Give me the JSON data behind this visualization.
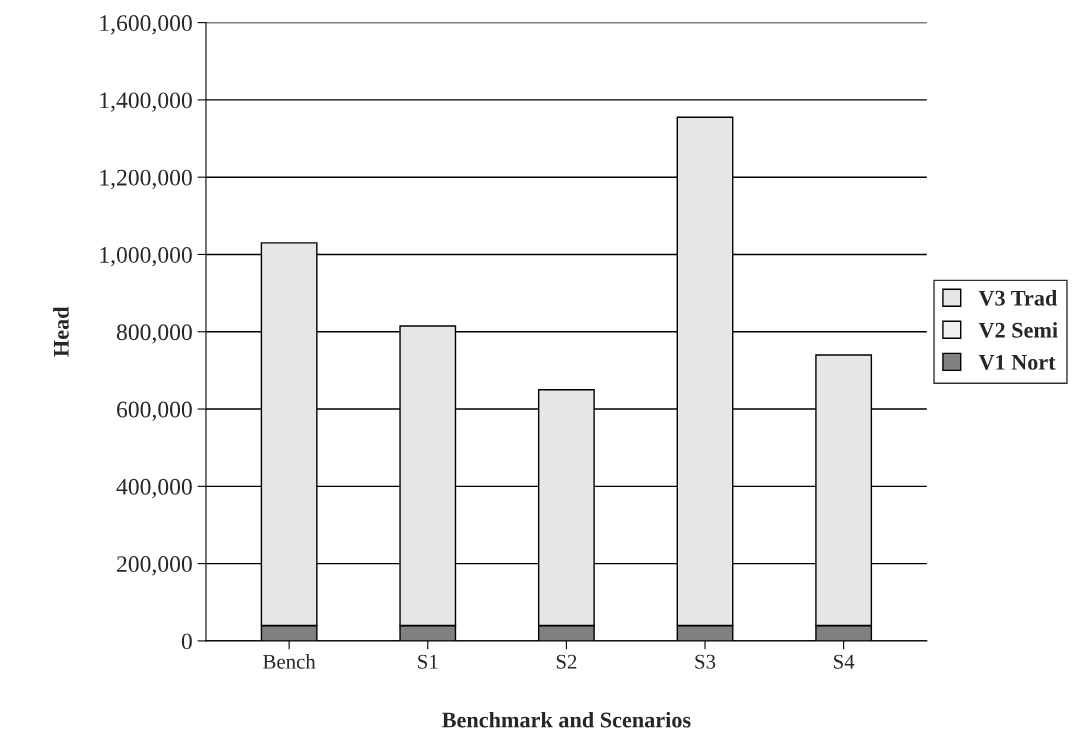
{
  "chart_data": {
    "type": "bar",
    "stacked": true,
    "xlabel": "Benchmark and Scenarios",
    "ylabel": "Head",
    "categories": [
      "Bench",
      "S1",
      "S2",
      "S3",
      "S4"
    ],
    "series": [
      {
        "name": "V1 Nort",
        "color": "#808080",
        "values": [
          40000,
          40000,
          40000,
          40000,
          40000
        ]
      },
      {
        "name": "V2 Semi",
        "color": "#f0f0f0",
        "values": [
          0,
          0,
          0,
          0,
          0
        ]
      },
      {
        "name": "V3 Trad",
        "color": "#e6e6e6",
        "values": [
          990000,
          775000,
          610000,
          1315000,
          700000
        ]
      }
    ],
    "ylim": [
      0,
      1600000
    ],
    "yticks": [
      {
        "value": 0,
        "label": "0"
      },
      {
        "value": 200000,
        "label": "200,000"
      },
      {
        "value": 400000,
        "label": "400,000"
      },
      {
        "value": 600000,
        "label": "600,000"
      },
      {
        "value": 800000,
        "label": "800,000"
      },
      {
        "value": 1000000,
        "label": "1,000,000"
      },
      {
        "value": 1200000,
        "label": "1,200,000"
      },
      {
        "value": 1400000,
        "label": "1,400,000"
      },
      {
        "value": 1600000,
        "label": "1,600,000"
      }
    ],
    "grid": "y",
    "legend": "right"
  }
}
